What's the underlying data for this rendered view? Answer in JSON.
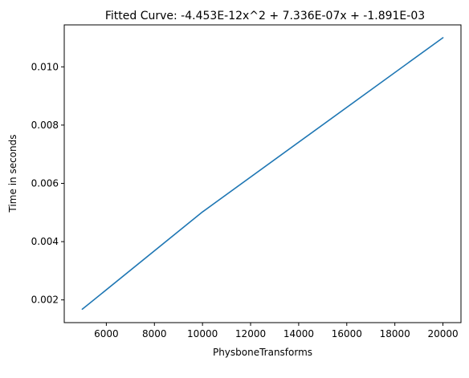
{
  "chart_data": {
    "type": "line",
    "title": "Fitted Curve: -4.453E-12x^2 + 7.336E-07x + -1.891E-03",
    "xlabel": "PhysboneTransforms",
    "ylabel": "Time in seconds",
    "xlim": [
      4250,
      20750
    ],
    "ylim": [
      0.00122,
      0.01144
    ],
    "x_ticks": [
      6000,
      8000,
      10000,
      12000,
      14000,
      16000,
      18000,
      20000
    ],
    "x_tick_labels": [
      "6000",
      "8000",
      "10000",
      "12000",
      "14000",
      "16000",
      "18000",
      "20000"
    ],
    "y_ticks": [
      0.002,
      0.004,
      0.006,
      0.008,
      0.01
    ],
    "y_tick_labels": [
      "0.002",
      "0.004",
      "0.006",
      "0.008",
      "0.010"
    ],
    "grid": false,
    "legend": "none",
    "series": [
      {
        "x": [
          5000,
          10000,
          20000
        ],
        "y": [
          0.00168,
          0.00502,
          0.011
        ],
        "color": "#1f77b4"
      }
    ]
  }
}
